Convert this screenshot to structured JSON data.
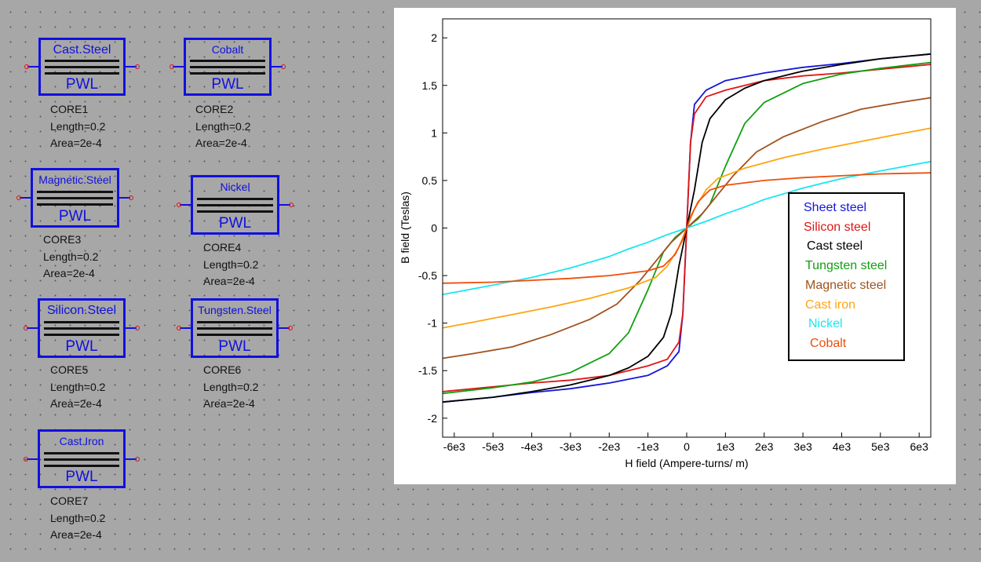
{
  "colors": {
    "component": "#1010e0",
    "pin": "#e01010"
  },
  "cores": [
    {
      "name": "Cast.Steel",
      "model": "PWL",
      "ref": "CORE1",
      "length": "Length=0.2",
      "area": "Area=2e-4"
    },
    {
      "name": "Cobalt",
      "model": "PWL",
      "ref": "CORE2",
      "length": "Length=0.2",
      "area": "Area=2e-4"
    },
    {
      "name": "Magnetic.Steel",
      "model": "PWL",
      "ref": "CORE3",
      "length": "Length=0.2",
      "area": "Area=2e-4"
    },
    {
      "name": "Nickel",
      "model": "PWL",
      "ref": "CORE4",
      "length": "Length=0.2",
      "area": "Area=2e-4"
    },
    {
      "name": "Silicon.Steel",
      "model": "PWL",
      "ref": "CORE5",
      "length": "Length=0.2",
      "area": "Area=2e-4"
    },
    {
      "name": "Tungsten.Steel",
      "model": "PWL",
      "ref": "CORE6",
      "length": "Length=0.2",
      "area": "Area=2e-4"
    },
    {
      "name": "Cast.Iron",
      "model": "PWL",
      "ref": "CORE7",
      "length": "Length=0.2",
      "area": "Area=2e-4"
    }
  ],
  "chart_data": {
    "type": "line",
    "title": "",
    "xlabel": "H field (Ampere-turns/ m)",
    "ylabel": "B field (Teslas)",
    "xlim": [
      -6300,
      6300
    ],
    "ylim": [
      -2.2,
      2.2
    ],
    "xticks": [
      -6000,
      -5000,
      -4000,
      -3000,
      -2000,
      -1000,
      0,
      1000,
      2000,
      3000,
      4000,
      5000,
      6000
    ],
    "xtick_labels": [
      "-6e3",
      "-5e3",
      "-4e3",
      "-3e3",
      "-2e3",
      "-1e3",
      "0",
      "1e3",
      "2e3",
      "3e3",
      "4e3",
      "5e3",
      "6e3"
    ],
    "yticks": [
      -2,
      -1.5,
      -1,
      -0.5,
      0,
      0.5,
      1,
      1.5,
      2
    ],
    "ytick_labels": [
      "-2",
      "-1.5",
      "-1",
      "-0.5",
      "0",
      "0.5",
      "1",
      "1.5",
      "2"
    ],
    "grid": false,
    "legend_position": "right",
    "series": [
      {
        "name": "Sheet steel",
        "color": "#1515d8",
        "points": [
          [
            0,
            0
          ],
          [
            100,
            0.9
          ],
          [
            200,
            1.3
          ],
          [
            500,
            1.45
          ],
          [
            1000,
            1.55
          ],
          [
            2000,
            1.63
          ],
          [
            3000,
            1.69
          ],
          [
            4000,
            1.73
          ],
          [
            5000,
            1.78
          ],
          [
            6300,
            1.83
          ]
        ]
      },
      {
        "name": "Silicon steel",
        "color": "#e01515",
        "points": [
          [
            0,
            0
          ],
          [
            100,
            0.9
          ],
          [
            200,
            1.2
          ],
          [
            500,
            1.38
          ],
          [
            1000,
            1.45
          ],
          [
            2000,
            1.55
          ],
          [
            3000,
            1.6
          ],
          [
            4000,
            1.63
          ],
          [
            5000,
            1.67
          ],
          [
            6300,
            1.72
          ]
        ]
      },
      {
        "name": "Cast  steel",
        "color": "#000000",
        "points": [
          [
            0,
            0
          ],
          [
            200,
            0.4
          ],
          [
            400,
            0.9
          ],
          [
            600,
            1.15
          ],
          [
            1000,
            1.35
          ],
          [
            1500,
            1.47
          ],
          [
            2000,
            1.55
          ],
          [
            3000,
            1.65
          ],
          [
            4000,
            1.72
          ],
          [
            5000,
            1.78
          ],
          [
            6300,
            1.83
          ]
        ]
      },
      {
        "name": "Tungsten steel",
        "color": "#10a010",
        "points": [
          [
            0,
            0
          ],
          [
            300,
            0.1
          ],
          [
            600,
            0.25
          ],
          [
            1000,
            0.65
          ],
          [
            1500,
            1.1
          ],
          [
            2000,
            1.32
          ],
          [
            3000,
            1.52
          ],
          [
            4000,
            1.62
          ],
          [
            5000,
            1.68
          ],
          [
            6300,
            1.74
          ]
        ]
      },
      {
        "name": "Magnetic steel",
        "color": "#a0521e",
        "points": [
          [
            0,
            0
          ],
          [
            400,
            0.15
          ],
          [
            800,
            0.35
          ],
          [
            1200,
            0.55
          ],
          [
            1800,
            0.8
          ],
          [
            2500,
            0.96
          ],
          [
            3500,
            1.12
          ],
          [
            4500,
            1.25
          ],
          [
            5500,
            1.32
          ],
          [
            6300,
            1.37
          ]
        ]
      },
      {
        "name": "Cast iron",
        "color": "#ffa510",
        "points": [
          [
            0,
            0
          ],
          [
            200,
            0.2
          ],
          [
            500,
            0.4
          ],
          [
            800,
            0.52
          ],
          [
            1500,
            0.63
          ],
          [
            2500,
            0.74
          ],
          [
            3500,
            0.83
          ],
          [
            4500,
            0.91
          ],
          [
            5500,
            0.99
          ],
          [
            6300,
            1.05
          ]
        ]
      },
      {
        "name": "Nickel",
        "color": "#1ae6f0",
        "points": [
          [
            0,
            0
          ],
          [
            500,
            0.07
          ],
          [
            1000,
            0.15
          ],
          [
            1500,
            0.22
          ],
          [
            2000,
            0.3
          ],
          [
            3000,
            0.42
          ],
          [
            4000,
            0.52
          ],
          [
            5000,
            0.6
          ],
          [
            6300,
            0.7
          ]
        ]
      },
      {
        "name": "Cobalt",
        "color": "#f04e0a",
        "points": [
          [
            0,
            0
          ],
          [
            100,
            0.12
          ],
          [
            300,
            0.28
          ],
          [
            600,
            0.4
          ],
          [
            1000,
            0.45
          ],
          [
            2000,
            0.5
          ],
          [
            3000,
            0.53
          ],
          [
            4000,
            0.55
          ],
          [
            5000,
            0.57
          ],
          [
            6300,
            0.58
          ]
        ]
      }
    ]
  }
}
